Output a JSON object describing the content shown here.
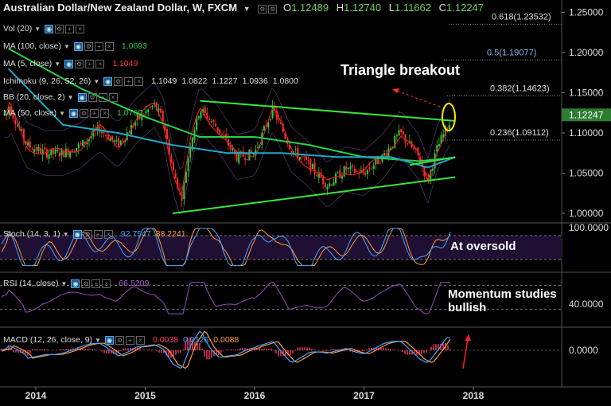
{
  "header": {
    "title": "Australian Dollar/New Zealand Dollar, W, FXCM",
    "o_label": "O",
    "o_value": "1.12489",
    "h_label": "H",
    "h_value": "1.12740",
    "l_label": "L",
    "l_value": "1.11662",
    "c_label": "C",
    "c_value": "1.12247"
  },
  "indicators": [
    {
      "label": "Vol (20)",
      "values": []
    },
    {
      "label": "MA (100, close)",
      "values": [
        "1.0693"
      ],
      "colors": [
        "#2ecc40"
      ]
    },
    {
      "label": "MA (5, close)",
      "values": [
        "1.1049"
      ],
      "colors": [
        "#ff3b3b"
      ]
    },
    {
      "label": "Ichimoku (9, 26, 52, 26)",
      "values": [
        "1.1049",
        "1.0822",
        "1.1227",
        "1.0936",
        "1.0800"
      ],
      "colors": [
        "#dddddd",
        "#dddddd",
        "#dddddd",
        "#dddddd",
        "#dddddd"
      ]
    },
    {
      "label": "BB (20, close, 2)",
      "values": [],
      "colors": []
    },
    {
      "label": "MA (50, close)",
      "values": [
        "1.0700"
      ],
      "colors": [
        "#2ecc40"
      ]
    }
  ],
  "subpanels": {
    "stoch": {
      "label": "Stoch (14, 3, 1)",
      "values": [
        "92.7547",
        "88.2241"
      ],
      "colors": [
        "#4aa3ff",
        "#ff9a3c"
      ]
    },
    "rsi": {
      "label": "RSI (14, close)",
      "values": [
        "66.5209"
      ],
      "colors": [
        "#b45cd6"
      ]
    },
    "macd": {
      "label": "MACD (12, 26, close, 9)",
      "values": [
        "0.0038",
        "0.0126",
        "0.0088"
      ],
      "colors": [
        "#ff3b6b",
        "#4aa3ff",
        "#ff9a3c"
      ]
    }
  },
  "annotations": {
    "triangle": "Triangle breakout",
    "oversold": "At oversold",
    "momentum_1": "Momentum studies",
    "momentum_2": "bullish"
  },
  "colors": {
    "background": "#000000",
    "bull": "#2ecc40",
    "bear": "#ff3030",
    "trendline": "#39e639",
    "ma100": "#27d34a",
    "ema": "#22a7c9",
    "stoch_k": "#4aa3ff",
    "stoch_d": "#ff9a3c",
    "rsi": "#8e44ad",
    "macd": "#4aa3ff",
    "signal": "#ff9a3c",
    "hist": "#ff3b6b",
    "panel_fill": "#1e0f33",
    "last_price_tag": "#2e7d32",
    "highlight_circle": "#ffe600"
  },
  "chart_data": {
    "type": "candlestick",
    "title": "Australian Dollar/New Zealand Dollar, W, FXCM",
    "x": [
      "2014",
      "2015",
      "2016",
      "2017",
      "2018"
    ],
    "y_ticks": [
      "1.25000",
      "1.20000",
      "1.15000",
      "1.10000",
      "1.05000",
      "1.00000"
    ],
    "ylim": [
      0.98,
      1.26
    ],
    "last_price": "1.12247",
    "fib_levels": [
      {
        "label": "0.618(1.23532)",
        "value": 1.23532
      },
      {
        "label": "0.5(1.19077)",
        "value": 1.19077
      },
      {
        "label": "0.382(1.14623)",
        "value": 1.14623
      },
      {
        "label": "0.236(1.09112)",
        "value": 1.09112
      }
    ],
    "close_path": [
      [
        "2013-10",
        1.135
      ],
      [
        "2013-12",
        1.085
      ],
      [
        "2014-02",
        1.075
      ],
      [
        "2014-04",
        1.075
      ],
      [
        "2014-06",
        1.085
      ],
      [
        "2014-08",
        1.105
      ],
      [
        "2014-10",
        1.085
      ],
      [
        "2014-12",
        1.115
      ],
      [
        "2015-02",
        1.135
      ],
      [
        "2015-03",
        1.115
      ],
      [
        "2015-04",
        1.055
      ],
      [
        "2015-05",
        1.02
      ],
      [
        "2015-06",
        1.09
      ],
      [
        "2015-07",
        1.13
      ],
      [
        "2015-09",
        1.105
      ],
      [
        "2015-11",
        1.07
      ],
      [
        "2016-01",
        1.075
      ],
      [
        "2016-03",
        1.13
      ],
      [
        "2016-05",
        1.08
      ],
      [
        "2016-07",
        1.06
      ],
      [
        "2016-09",
        1.035
      ],
      [
        "2016-11",
        1.055
      ],
      [
        "2017-01",
        1.05
      ],
      [
        "2017-03",
        1.07
      ],
      [
        "2017-05",
        1.1
      ],
      [
        "2017-07",
        1.07
      ],
      [
        "2017-08",
        1.04
      ],
      [
        "2017-09",
        1.08
      ],
      [
        "2017-10",
        1.105
      ],
      [
        "2017-11",
        1.12247
      ]
    ],
    "ma100_path": [
      [
        "2013-10",
        1.205
      ],
      [
        "2014-06",
        1.155
      ],
      [
        "2015-01",
        1.12
      ],
      [
        "2015-07",
        1.095
      ],
      [
        "2016-01",
        1.095
      ],
      [
        "2016-07",
        1.085
      ],
      [
        "2017-01",
        1.07
      ],
      [
        "2017-07",
        1.065
      ],
      [
        "2017-11",
        1.0693
      ]
    ],
    "ema_path": [
      [
        "2013-10",
        1.18
      ],
      [
        "2014-04",
        1.11
      ],
      [
        "2014-10",
        1.1
      ],
      [
        "2015-04",
        1.085
      ],
      [
        "2015-10",
        1.075
      ],
      [
        "2016-04",
        1.075
      ],
      [
        "2016-10",
        1.07
      ],
      [
        "2017-04",
        1.07
      ],
      [
        "2017-08",
        1.057
      ],
      [
        "2017-11",
        1.07
      ]
    ],
    "trendlines": [
      {
        "from": [
          "2015-07",
          1.14
        ],
        "to": [
          "2017-11",
          1.115
        ]
      },
      {
        "from": [
          "2015-04",
          1.0
        ],
        "to": [
          "2017-11",
          1.045
        ]
      },
      {
        "from": [
          "2017-06",
          1.06
        ],
        "to": [
          "2017-11",
          1.07
        ]
      }
    ],
    "stoch": {
      "levels": [
        80,
        20
      ],
      "y_tick": "100.0000",
      "k": 92.7547,
      "d": 88.2241
    },
    "rsi": {
      "levels": [
        70,
        30
      ],
      "y_tick": "40.0000",
      "value": 66.5209
    },
    "macd": {
      "y_tick": "0.0000",
      "hist": 0.0038,
      "macd": 0.0126,
      "signal": 0.0088
    }
  }
}
